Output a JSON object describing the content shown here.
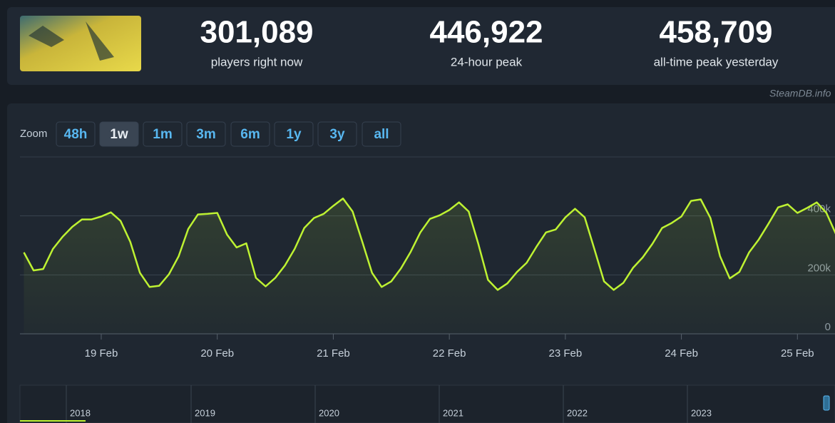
{
  "header": {
    "stats": [
      {
        "value": "301,089",
        "label": "players right now"
      },
      {
        "value": "446,922",
        "label": "24-hour peak"
      },
      {
        "value": "458,709",
        "label": "all-time peak yesterday"
      }
    ],
    "credit": "SteamDB.info"
  },
  "zoom": {
    "label": "Zoom",
    "buttons": [
      "48h",
      "1w",
      "1m",
      "3m",
      "6m",
      "1y",
      "3y",
      "all"
    ],
    "active": "1w"
  },
  "chart_data": {
    "type": "line",
    "color": "#bef232",
    "categories": [
      null,
      null,
      null,
      null,
      null,
      null,
      null,
      null,
      "19 Feb",
      null,
      null,
      null,
      null,
      null,
      null,
      null,
      null,
      null,
      null,
      null,
      "20 Feb",
      null,
      null,
      null,
      null,
      null,
      null,
      null,
      null,
      null,
      null,
      null,
      "21 Feb",
      null,
      null,
      null,
      null,
      null,
      null,
      null,
      null,
      null,
      null,
      null,
      "22 Feb",
      null,
      null,
      null,
      null,
      null,
      null,
      null,
      null,
      null,
      null,
      null,
      "23 Feb",
      null,
      null,
      null,
      null,
      null,
      null,
      null,
      null,
      null,
      null,
      null,
      "24 Feb",
      null,
      null,
      null,
      null,
      null,
      null,
      null,
      null,
      null,
      null,
      null,
      "25 Feb",
      null,
      null,
      null,
      null
    ],
    "values": [
      276000,
      215000,
      220000,
      288000,
      329000,
      363000,
      388000,
      388000,
      398000,
      412000,
      383000,
      312000,
      207000,
      159000,
      163000,
      202000,
      263000,
      356000,
      405000,
      407000,
      410000,
      337000,
      293000,
      307000,
      190000,
      161000,
      190000,
      232000,
      288000,
      359000,
      393000,
      407000,
      434000,
      459000,
      415000,
      312000,
      207000,
      159000,
      178000,
      222000,
      278000,
      344000,
      390000,
      402000,
      420000,
      446000,
      415000,
      305000,
      183000,
      149000,
      171000,
      210000,
      241000,
      295000,
      344000,
      354000,
      395000,
      424000,
      395000,
      288000,
      178000,
      149000,
      173000,
      224000,
      259000,
      305000,
      359000,
      376000,
      398000,
      451000,
      456000,
      393000,
      263000,
      188000,
      210000,
      276000,
      320000,
      373000,
      429000,
      439000,
      410000,
      427000,
      446000,
      410000,
      337000
    ],
    "ylim": [
      0,
      600000
    ],
    "yticks": [
      0,
      {
        "value": 200000,
        "label": "200k"
      },
      {
        "value": 400000,
        "label": "400k"
      }
    ],
    "grid": true
  },
  "navigator": {
    "years": [
      "2018",
      "2019",
      "2020",
      "2021",
      "2022",
      "2023"
    ]
  }
}
